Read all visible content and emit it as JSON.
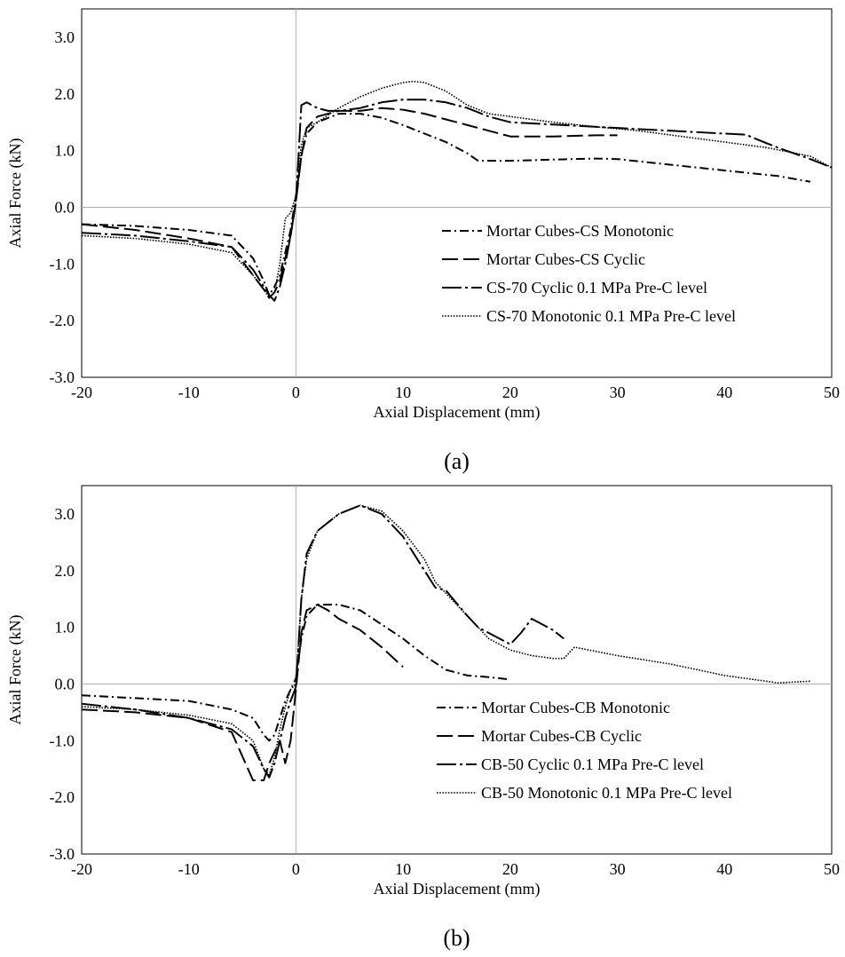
{
  "chart_data": [
    {
      "type": "line",
      "caption": "(a)",
      "xlabel": "Axial Displacement (mm)",
      "ylabel": "Axial Force (kN)",
      "xlim": [
        -20,
        50
      ],
      "ylim": [
        -3,
        3.5
      ],
      "x_ticks": [
        "-20",
        "-10",
        "0",
        "10",
        "20",
        "30",
        "40",
        "50"
      ],
      "y_ticks": [
        "-3.0",
        "-2.0",
        "-1.0",
        "0.0",
        "1.0",
        "2.0",
        "3.0"
      ],
      "legend_position": "lower-right",
      "series": [
        {
          "name": "Mortar Cubes-CS Monotonic",
          "dash": "dashdot",
          "x": [
            -20,
            -15,
            -10,
            -6,
            -4,
            -3,
            -2.5,
            -2,
            -1.5,
            -1,
            -0.5,
            0,
            0.5,
            1,
            2,
            4,
            6,
            8,
            10,
            12,
            14,
            16,
            17,
            20,
            24,
            28,
            30,
            35,
            40,
            45,
            48
          ],
          "y": [
            -0.3,
            -0.33,
            -0.4,
            -0.5,
            -0.9,
            -1.3,
            -1.55,
            -1.4,
            -1.2,
            -0.8,
            -0.4,
            0.2,
            0.9,
            1.3,
            1.5,
            1.65,
            1.65,
            1.58,
            1.45,
            1.3,
            1.15,
            0.95,
            0.82,
            0.82,
            0.84,
            0.86,
            0.85,
            0.75,
            0.65,
            0.55,
            0.45
          ]
        },
        {
          "name": "Mortar Cubes-CS Cyclic",
          "dash": "longdash",
          "x": [
            -20,
            -15,
            -10,
            -6,
            -4,
            -3,
            -2.5,
            -2,
            -1.5,
            -1,
            -0.5,
            0,
            0.5,
            1,
            2,
            4,
            6,
            8,
            10,
            12,
            14,
            16,
            18,
            20,
            24,
            28,
            30
          ],
          "y": [
            -0.3,
            -0.4,
            -0.55,
            -0.7,
            -1.2,
            -1.45,
            -1.6,
            -1.5,
            -1.3,
            -0.9,
            -0.5,
            0.1,
            0.9,
            1.4,
            1.6,
            1.7,
            1.7,
            1.75,
            1.72,
            1.65,
            1.55,
            1.45,
            1.35,
            1.25,
            1.25,
            1.27,
            1.27
          ]
        },
        {
          "name": "CS-70 Cyclic 0.1 MPa Pre-C level",
          "dash": "dashdotlong",
          "x": [
            -20,
            -15,
            -10,
            -6,
            -4,
            -3,
            -2.5,
            -2,
            -1.5,
            -1,
            -0.5,
            0,
            0.5,
            1,
            2,
            3,
            4,
            6,
            8,
            10,
            12,
            14,
            16,
            18,
            20,
            25,
            30,
            35,
            40,
            42,
            43,
            45,
            48,
            50
          ],
          "y": [
            -0.45,
            -0.5,
            -0.6,
            -0.7,
            -1.1,
            -1.4,
            -1.55,
            -1.65,
            -1.4,
            -1.0,
            -0.5,
            0.1,
            1.8,
            1.85,
            1.75,
            1.7,
            1.7,
            1.75,
            1.85,
            1.9,
            1.9,
            1.85,
            1.75,
            1.6,
            1.5,
            1.45,
            1.4,
            1.35,
            1.3,
            1.28,
            1.2,
            1.05,
            0.85,
            0.7
          ]
        },
        {
          "name": "CS-70 Monotonic 0.1 MPa Pre-C level",
          "dash": "dotted",
          "x": [
            -20,
            -15,
            -10,
            -6,
            -4,
            -3,
            -2.5,
            -2,
            -1.5,
            -1,
            -0.5,
            0,
            0.5,
            1,
            2,
            4,
            6,
            8,
            10,
            11,
            12,
            14,
            16,
            18,
            20,
            24,
            28,
            32,
            36,
            40,
            44,
            48,
            50
          ],
          "y": [
            -0.5,
            -0.55,
            -0.65,
            -0.8,
            -1.2,
            -1.45,
            -1.6,
            -1.5,
            -1.0,
            -0.2,
            -0.1,
            0.2,
            1.1,
            1.4,
            1.5,
            1.75,
            1.95,
            2.1,
            2.2,
            2.22,
            2.2,
            2.05,
            1.8,
            1.65,
            1.6,
            1.5,
            1.42,
            1.35,
            1.25,
            1.15,
            1.05,
            0.9,
            0.7
          ]
        }
      ]
    },
    {
      "type": "line",
      "caption": "(b)",
      "xlabel": "Axial Displacement (mm)",
      "ylabel": "Axial Force (kN)",
      "xlim": [
        -20,
        50
      ],
      "ylim": [
        -3,
        3.5
      ],
      "x_ticks": [
        "-20",
        "-10",
        "0",
        "10",
        "20",
        "30",
        "40",
        "50"
      ],
      "y_ticks": [
        "-3.0",
        "-2.0",
        "-1.0",
        "0.0",
        "1.0",
        "2.0",
        "3.0"
      ],
      "legend_position": "lower-right",
      "series": [
        {
          "name": "Mortar Cubes-CB Monotonic",
          "dash": "dashdot",
          "x": [
            -20,
            -15,
            -10,
            -6,
            -4,
            -3,
            -2.5,
            -2,
            -1.5,
            -1,
            -0.5,
            0,
            0.5,
            1,
            2,
            4,
            6,
            8,
            10,
            12,
            14,
            16,
            18,
            20
          ],
          "y": [
            -0.2,
            -0.25,
            -0.3,
            -0.45,
            -0.6,
            -0.9,
            -1.0,
            -0.9,
            -0.6,
            -0.3,
            -0.1,
            0.1,
            0.8,
            1.2,
            1.4,
            1.4,
            1.3,
            1.05,
            0.8,
            0.5,
            0.25,
            0.15,
            0.12,
            0.08
          ]
        },
        {
          "name": "Mortar Cubes-CB Cyclic",
          "dash": "longdash",
          "x": [
            -20,
            -15,
            -10,
            -6,
            -4,
            -3,
            -2.5,
            -2,
            -1.5,
            -1,
            -0.5,
            0,
            0.5,
            1,
            2,
            3,
            4,
            6,
            8,
            10
          ],
          "y": [
            -0.45,
            -0.5,
            -0.6,
            -0.85,
            -1.7,
            -1.7,
            -1.4,
            -1.2,
            -1.0,
            -1.4,
            -1.0,
            -0.1,
            0.9,
            1.3,
            1.4,
            1.3,
            1.15,
            0.95,
            0.65,
            0.3
          ]
        },
        {
          "name": "CB-50 Cyclic 0.1 MPa Pre-C level",
          "dash": "dashdotlong",
          "x": [
            -20,
            -15,
            -10,
            -6,
            -4,
            -3,
            -2.5,
            -2,
            -1.5,
            -1,
            -0.5,
            0,
            0.5,
            1,
            2,
            4,
            6,
            8,
            10,
            12,
            13,
            14,
            16,
            17,
            18,
            20,
            21,
            22,
            24,
            25
          ],
          "y": [
            -0.35,
            -0.45,
            -0.6,
            -0.8,
            -1.1,
            -1.5,
            -1.65,
            -1.4,
            -1.0,
            -0.6,
            -0.3,
            -0.05,
            1.5,
            2.3,
            2.7,
            3.0,
            3.15,
            3.0,
            2.6,
            2.0,
            1.7,
            1.65,
            1.2,
            1.0,
            0.9,
            0.7,
            0.9,
            1.15,
            0.95,
            0.8
          ]
        },
        {
          "name": "CB-50 Monotonic 0.1 MPa Pre-C level",
          "dash": "dotted",
          "x": [
            -20,
            -15,
            -10,
            -6,
            -4,
            -3,
            -2.5,
            -2,
            -1.5,
            -1,
            -0.5,
            0,
            0.5,
            1,
            2,
            4,
            6,
            8,
            10,
            12,
            13,
            14,
            16,
            18,
            20,
            22,
            24,
            25,
            26,
            30,
            35,
            40,
            45,
            48
          ],
          "y": [
            -0.4,
            -0.45,
            -0.55,
            -0.7,
            -1.0,
            -1.5,
            -1.6,
            -1.3,
            -0.8,
            -0.4,
            -0.1,
            0.0,
            1.5,
            2.2,
            2.7,
            3.0,
            3.15,
            3.05,
            2.7,
            2.2,
            1.8,
            1.6,
            1.2,
            0.8,
            0.6,
            0.5,
            0.45,
            0.45,
            0.65,
            0.5,
            0.35,
            0.15,
            0.02,
            0.05
          ]
        }
      ]
    }
  ]
}
